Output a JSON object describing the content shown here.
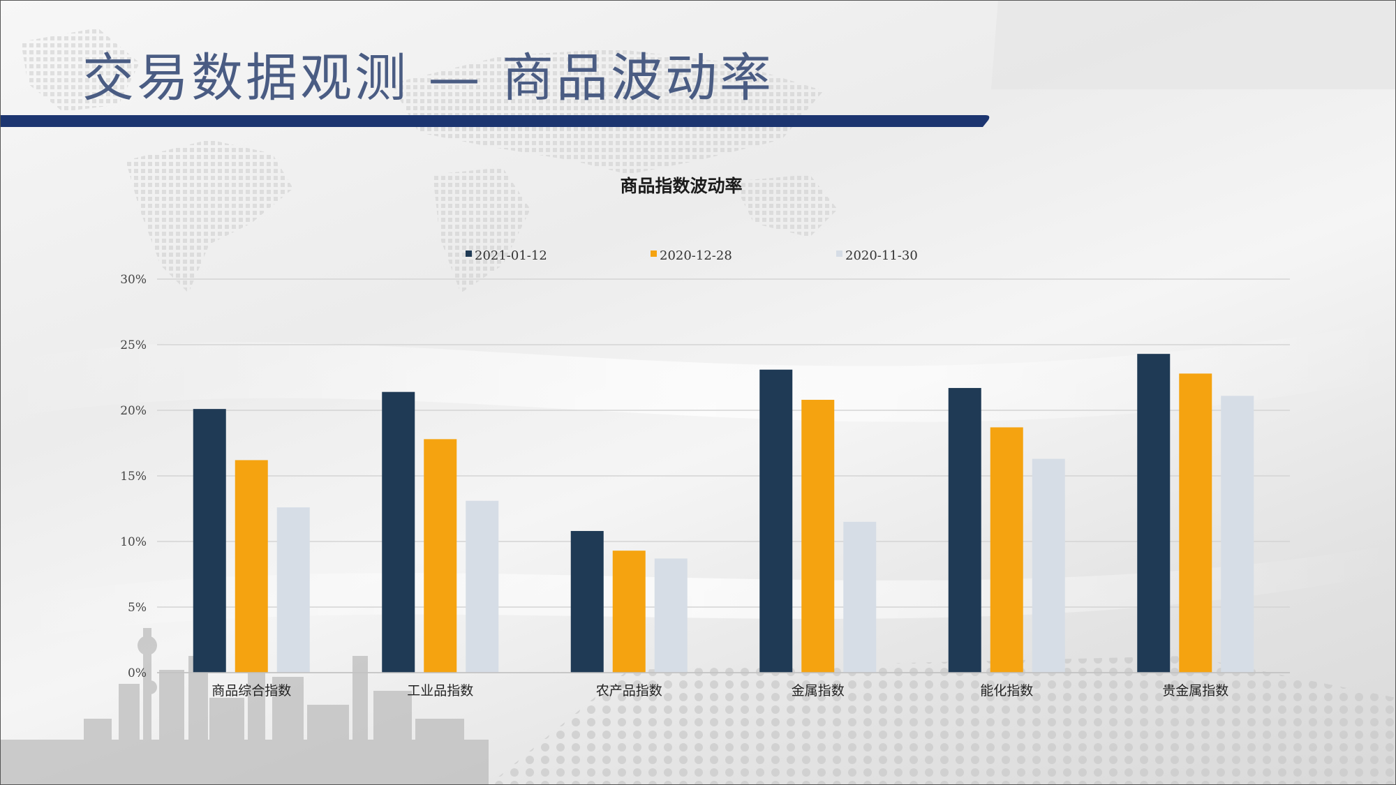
{
  "slide": {
    "title": "交易数据观测 — 商品波动率"
  },
  "colors": {
    "title_text": "#4a5c83",
    "header_band": "#1c3570",
    "series": [
      "#1f3a55",
      "#f5a310",
      "#d6dde6"
    ],
    "gridline": "#d4d4d4"
  },
  "chart_data": {
    "type": "bar",
    "title": "商品指数波动率",
    "categories": [
      "商品综合指数",
      "工业品指数",
      "农产品指数",
      "金属指数",
      "能化指数",
      "贵金属指数"
    ],
    "series": [
      {
        "name": "2021-01-12",
        "values": [
          0.201,
          0.214,
          0.108,
          0.231,
          0.217,
          0.243
        ]
      },
      {
        "name": "2020-12-28",
        "values": [
          0.162,
          0.178,
          0.093,
          0.208,
          0.187,
          0.228
        ]
      },
      {
        "name": "2020-11-30",
        "values": [
          0.126,
          0.131,
          0.087,
          0.115,
          0.163,
          0.211
        ]
      }
    ],
    "ylim": [
      0,
      0.3
    ],
    "yticks": [
      "0%",
      "5%",
      "10%",
      "15%",
      "20%",
      "25%",
      "30%"
    ],
    "ytick_values": [
      0,
      0.05,
      0.1,
      0.15,
      0.2,
      0.25,
      0.3
    ],
    "xlabel": "",
    "ylabel": "",
    "grid": true,
    "legend_position": "top"
  }
}
